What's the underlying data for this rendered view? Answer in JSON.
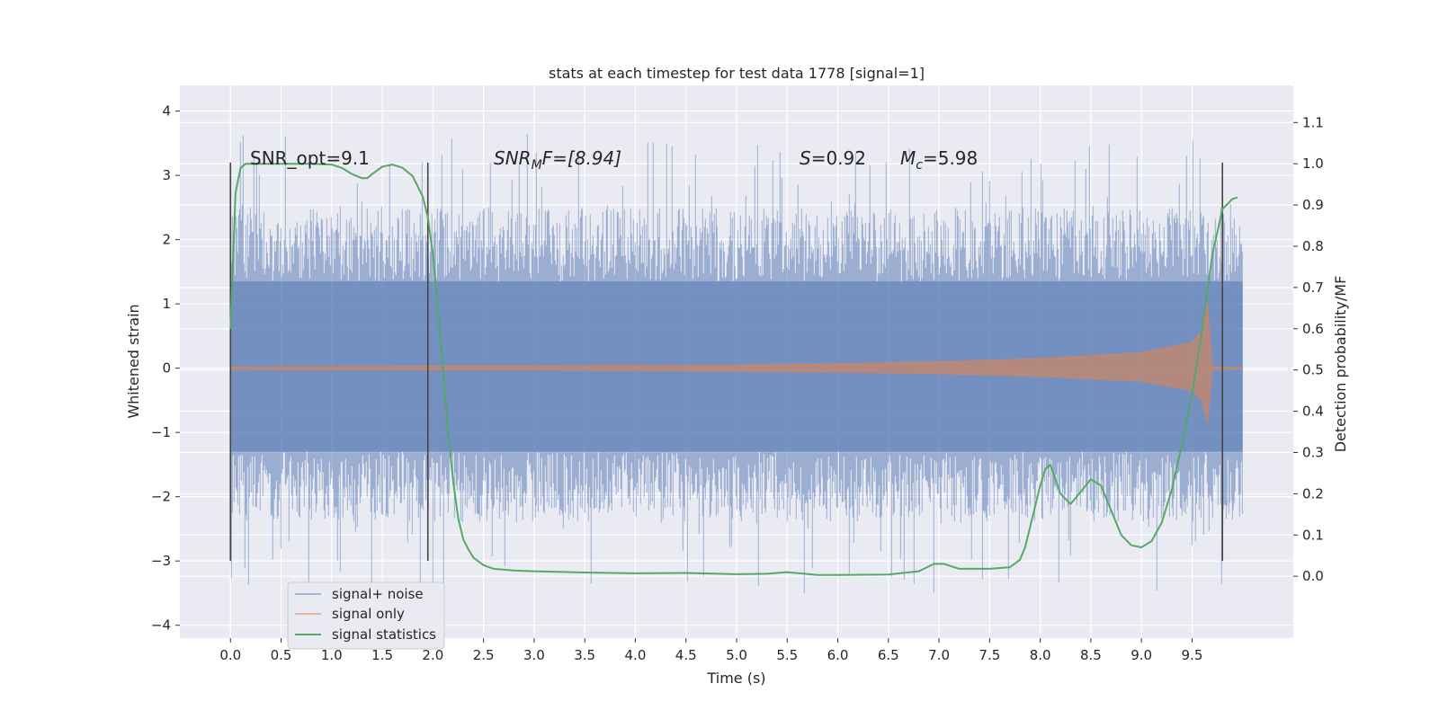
{
  "chart_data": {
    "type": "line",
    "title": "stats at each timestep for test data 1778 [signal=1]",
    "xlabel": "Time (s)",
    "ylabel": "Whitened strain",
    "y2label": "Detection probability/MF",
    "xlim": [
      -0.5,
      10.5
    ],
    "ylim": [
      -4.2,
      4.4
    ],
    "y2lim": [
      -0.15,
      1.19
    ],
    "xticks": [
      "0.0",
      "0.5",
      "1.0",
      "1.5",
      "2.0",
      "2.5",
      "3.0",
      "3.5",
      "4.0",
      "4.5",
      "5.0",
      "5.5",
      "6.0",
      "6.5",
      "7.0",
      "7.5",
      "8.0",
      "8.5",
      "9.0",
      "9.5"
    ],
    "yticks": [
      "-4",
      "-3",
      "-2",
      "-1",
      "0",
      "1",
      "2",
      "3",
      "4"
    ],
    "y2ticks": [
      "0.0",
      "0.1",
      "0.2",
      "0.3",
      "0.4",
      "0.5",
      "0.6",
      "0.7",
      "0.8",
      "0.9",
      "1.0",
      "1.1"
    ],
    "grid": true,
    "legend_position": "lower-left",
    "annotations": {
      "snr_opt": "SNR_opt=9.1",
      "snr_mf_main": "SNR",
      "snr_mf_sub": "M",
      "snr_mf_rest": "F=[8.94]",
      "s_label": "S",
      "s_value": "=0.92",
      "mc_label": "M",
      "mc_sub": "c",
      "mc_value": "=5.98"
    },
    "vertical_lines": {
      "x": [
        0.0,
        1.95,
        9.8
      ],
      "ymin": -3.0,
      "ymax": 3.2
    },
    "colors": {
      "background": "#eaeaf2",
      "noise": "#4c72b0",
      "signal": "#dd8452",
      "stats": "#55a868",
      "vline": "#444444"
    },
    "series": [
      {
        "name": "signal+ noise",
        "kind": "noise-band",
        "x_range": [
          0.0,
          10.0
        ],
        "core_range": [
          -1.3,
          1.35
        ],
        "typical_range": [
          -2.4,
          2.5
        ],
        "peak_range": [
          -3.5,
          4.05
        ]
      },
      {
        "name": "signal only",
        "kind": "chirp",
        "x_range": [
          0.0,
          10.0
        ],
        "amplitude": {
          "x": [
            0.0,
            2.0,
            4.0,
            5.0,
            6.0,
            7.0,
            8.0,
            9.0,
            9.5,
            9.6,
            9.65,
            9.7,
            10.0
          ],
          "y": [
            0.02,
            0.03,
            0.04,
            0.05,
            0.07,
            0.1,
            0.15,
            0.24,
            0.4,
            0.6,
            1.0,
            0.02,
            0.01
          ]
        }
      },
      {
        "name": "signal statistics",
        "kind": "line",
        "axis": "right",
        "x": [
          0.0,
          0.05,
          0.1,
          0.15,
          0.25,
          0.4,
          0.6,
          0.8,
          1.0,
          1.1,
          1.2,
          1.3,
          1.35,
          1.4,
          1.5,
          1.6,
          1.7,
          1.8,
          1.9,
          1.95,
          2.0,
          2.05,
          2.1,
          2.15,
          2.2,
          2.25,
          2.3,
          2.35,
          2.4,
          2.5,
          2.6,
          2.8,
          3.0,
          3.5,
          4.0,
          4.5,
          5.0,
          5.3,
          5.5,
          5.8,
          6.0,
          6.5,
          6.8,
          6.95,
          7.05,
          7.2,
          7.5,
          7.7,
          7.8,
          7.85,
          7.9,
          8.0,
          8.05,
          8.1,
          8.2,
          8.3,
          8.4,
          8.5,
          8.6,
          8.7,
          8.8,
          8.9,
          9.0,
          9.1,
          9.2,
          9.3,
          9.4,
          9.5,
          9.6,
          9.7,
          9.8,
          9.9,
          9.95
        ],
        "y": [
          0.6,
          0.93,
          0.99,
          1.0,
          1.0,
          1.0,
          1.0,
          1.0,
          0.998,
          0.99,
          0.975,
          0.965,
          0.965,
          0.975,
          0.993,
          0.998,
          0.99,
          0.97,
          0.92,
          0.87,
          0.78,
          0.65,
          0.5,
          0.35,
          0.23,
          0.14,
          0.09,
          0.065,
          0.045,
          0.027,
          0.018,
          0.014,
          0.012,
          0.009,
          0.007,
          0.008,
          0.005,
          0.006,
          0.01,
          0.003,
          0.003,
          0.004,
          0.012,
          0.03,
          0.03,
          0.018,
          0.018,
          0.022,
          0.04,
          0.07,
          0.12,
          0.22,
          0.26,
          0.27,
          0.2,
          0.175,
          0.205,
          0.235,
          0.22,
          0.16,
          0.1,
          0.075,
          0.07,
          0.085,
          0.13,
          0.21,
          0.32,
          0.44,
          0.6,
          0.78,
          0.89,
          0.915,
          0.918
        ]
      }
    ]
  }
}
